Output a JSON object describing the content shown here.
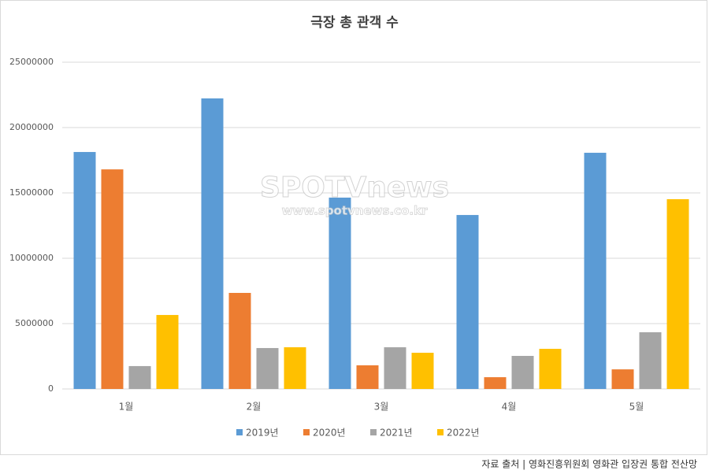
{
  "chart_data": {
    "type": "bar",
    "title": "극장 총 관객 수",
    "categories": [
      "1월",
      "2월",
      "3월",
      "4월",
      "5월"
    ],
    "series": [
      {
        "name": "2019년",
        "color": "#5b9bd5",
        "values": [
          18130000,
          22230000,
          14640000,
          13310000,
          18070000
        ]
      },
      {
        "name": "2020년",
        "color": "#ed7d31",
        "values": [
          16800000,
          7350000,
          1810000,
          900000,
          1500000
        ]
      },
      {
        "name": "2021년",
        "color": "#a5a5a5",
        "values": [
          1750000,
          3130000,
          3190000,
          2530000,
          4340000
        ]
      },
      {
        "name": "2022년",
        "color": "#ffc000",
        "values": [
          5660000,
          3190000,
          2770000,
          3070000,
          14520000
        ]
      }
    ],
    "ylim": [
      0,
      25000000
    ],
    "yticks": [
      0,
      5000000,
      10000000,
      15000000,
      20000000,
      25000000
    ],
    "grid": true,
    "legend": "bottom",
    "watermark": [
      "SPOTVnews",
      "www.spotvnews.co.kr"
    ],
    "source": "자료 출처 | 영화진흥위원회 영화관 입장권 통합 전산망"
  }
}
